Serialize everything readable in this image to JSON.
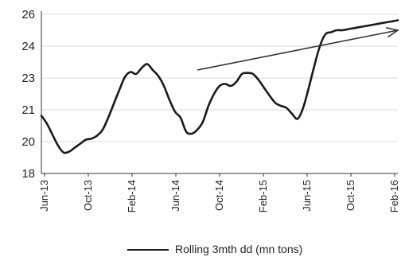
{
  "chart_data": {
    "type": "line",
    "title": "",
    "xlabel": "",
    "ylabel": "",
    "ylim": [
      18,
      26
    ],
    "yticks": [
      "18",
      "20",
      "21",
      "23",
      "24",
      "26"
    ],
    "xticks": [
      "Jun-13",
      "Oct-13",
      "Feb-14",
      "Jun-14",
      "Oct-14",
      "Feb-15",
      "Jun-15",
      "Oct-15",
      "Feb-16"
    ],
    "grid": "horizontal",
    "legend": "bottom",
    "series": [
      {
        "name": "Rolling 3mth dd (mn tons)",
        "color": "#1a1a1a",
        "x": [
          0,
          0.5,
          1,
          1.5,
          2,
          2.5,
          3,
          3.5,
          4,
          4.5,
          5,
          5.5,
          6,
          6.5,
          7,
          7.5,
          8,
          8.5,
          9,
          9.5,
          10,
          10.5,
          11,
          11.5,
          12,
          12.5,
          13,
          13.5,
          14,
          14.5,
          15,
          15.5,
          16,
          16.5,
          17,
          17.5,
          18,
          18.5,
          19,
          19.5,
          20,
          20.5,
          21,
          21.5,
          22,
          22.5,
          23,
          23.5,
          24,
          24.5,
          25,
          25.5,
          26,
          26.5,
          27,
          27.5,
          28,
          28.5,
          29,
          29.5,
          30,
          30.5,
          31,
          31.5,
          32
        ],
        "y": [
          20.9,
          20.5,
          19.95,
          19.4,
          19.05,
          19.1,
          19.3,
          19.5,
          19.7,
          19.75,
          19.9,
          20.2,
          20.8,
          21.5,
          22.2,
          22.85,
          23.1,
          23.0,
          23.3,
          23.5,
          23.2,
          22.9,
          22.4,
          21.7,
          21.1,
          20.8,
          20.1,
          20.0,
          20.2,
          20.6,
          21.4,
          22.0,
          22.4,
          22.5,
          22.4,
          22.6,
          23.0,
          23.05,
          23.0,
          22.7,
          22.3,
          21.9,
          21.55,
          21.4,
          21.3,
          21.0,
          20.75,
          21.3,
          22.3,
          23.4,
          24.4,
          25.0,
          25.1,
          25.2,
          25.2,
          25.25,
          25.3,
          25.35,
          25.4,
          25.45,
          25.5,
          25.55,
          25.6,
          25.65,
          25.7
        ]
      }
    ],
    "annotations": [
      {
        "type": "trend-arrow",
        "from": {
          "x": 14,
          "y": 23.2
        },
        "to": {
          "x": 32,
          "y": 25.2
        }
      }
    ]
  }
}
